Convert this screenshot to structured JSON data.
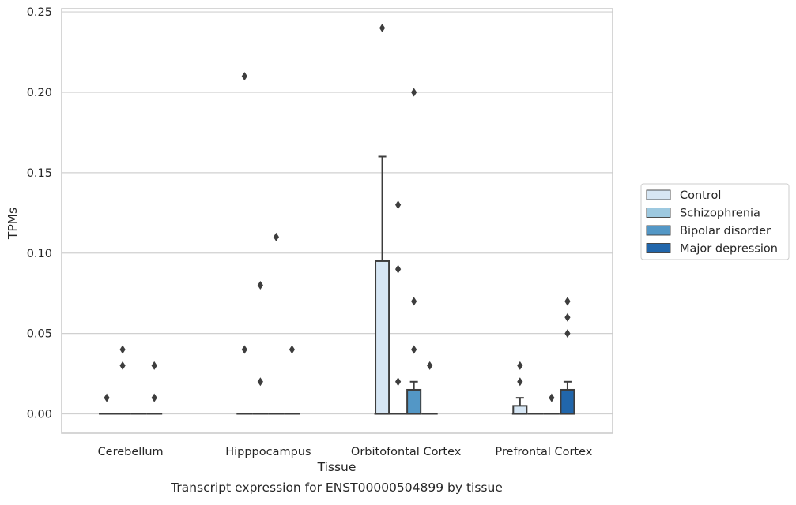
{
  "chart_data": {
    "type": "box",
    "title": "",
    "caption": "Transcript expression for ENST00000504899 by tissue",
    "xlabel": "Tissue",
    "ylabel": "TPMs",
    "ylim": [
      -0.012,
      0.252
    ],
    "yticks": [
      "0.00",
      "0.05",
      "0.10",
      "0.15",
      "0.20",
      "0.25"
    ],
    "ytick_values": [
      0.0,
      0.05,
      0.1,
      0.15,
      0.2,
      0.25
    ],
    "grid": "horizontal",
    "legend_position": "right",
    "categories": [
      "Cerebellum",
      "Hipppocampus",
      "Orbitofontal Cortex",
      "Prefrontal Cortex"
    ],
    "series": [
      {
        "name": "Control",
        "color": "#d6e6f4",
        "boxes": [
          {
            "q1": 0,
            "median": 0,
            "q3": 0,
            "whisker_low": 0,
            "whisker_high": 0,
            "outliers": [
              0.01
            ]
          },
          {
            "q1": 0,
            "median": 0,
            "q3": 0,
            "whisker_low": 0,
            "whisker_high": 0,
            "outliers": [
              0.04,
              0.21
            ]
          },
          {
            "q1": 0,
            "median": 0,
            "q3": 0.095,
            "whisker_low": 0,
            "whisker_high": 0.16,
            "outliers": [
              0.24
            ]
          },
          {
            "q1": 0,
            "median": 0,
            "q3": 0.005,
            "whisker_low": 0,
            "whisker_high": 0.01,
            "outliers": [
              0.02,
              0.03
            ]
          }
        ]
      },
      {
        "name": "Schizophrenia",
        "color": "#9dc9e0",
        "boxes": [
          {
            "q1": 0,
            "median": 0,
            "q3": 0,
            "whisker_low": 0,
            "whisker_high": 0,
            "outliers": [
              0.03,
              0.04
            ]
          },
          {
            "q1": 0,
            "median": 0,
            "q3": 0,
            "whisker_low": 0,
            "whisker_high": 0,
            "outliers": [
              0.02,
              0.08
            ]
          },
          {
            "q1": 0,
            "median": 0,
            "q3": 0,
            "whisker_low": 0,
            "whisker_high": 0,
            "outliers": [
              0.02,
              0.09,
              0.13
            ]
          },
          {
            "q1": 0,
            "median": 0,
            "q3": 0,
            "whisker_low": 0,
            "whisker_high": 0,
            "outliers": []
          }
        ]
      },
      {
        "name": "Bipolar disorder",
        "color": "#5397c6",
        "boxes": [
          {
            "q1": 0,
            "median": 0,
            "q3": 0,
            "whisker_low": 0,
            "whisker_high": 0,
            "outliers": []
          },
          {
            "q1": 0,
            "median": 0,
            "q3": 0,
            "whisker_low": 0,
            "whisker_high": 0,
            "outliers": [
              0.11
            ]
          },
          {
            "q1": 0,
            "median": 0,
            "q3": 0.015,
            "whisker_low": 0,
            "whisker_high": 0.02,
            "outliers": [
              0.04,
              0.07,
              0.2
            ]
          },
          {
            "q1": 0,
            "median": 0,
            "q3": 0,
            "whisker_low": 0,
            "whisker_high": 0,
            "outliers": [
              0.01
            ]
          }
        ]
      },
      {
        "name": "Major depression",
        "color": "#2166ab",
        "boxes": [
          {
            "q1": 0,
            "median": 0,
            "q3": 0,
            "whisker_low": 0,
            "whisker_high": 0,
            "outliers": [
              0.01,
              0.03
            ]
          },
          {
            "q1": 0,
            "median": 0,
            "q3": 0,
            "whisker_low": 0,
            "whisker_high": 0,
            "outliers": [
              0.04
            ]
          },
          {
            "q1": 0,
            "median": 0,
            "q3": 0,
            "whisker_low": 0,
            "whisker_high": 0,
            "outliers": [
              0.03
            ]
          },
          {
            "q1": 0,
            "median": 0,
            "q3": 0.015,
            "whisker_low": 0,
            "whisker_high": 0.02,
            "outliers": [
              0.05,
              0.06,
              0.07,
              0.07
            ]
          }
        ]
      }
    ]
  }
}
